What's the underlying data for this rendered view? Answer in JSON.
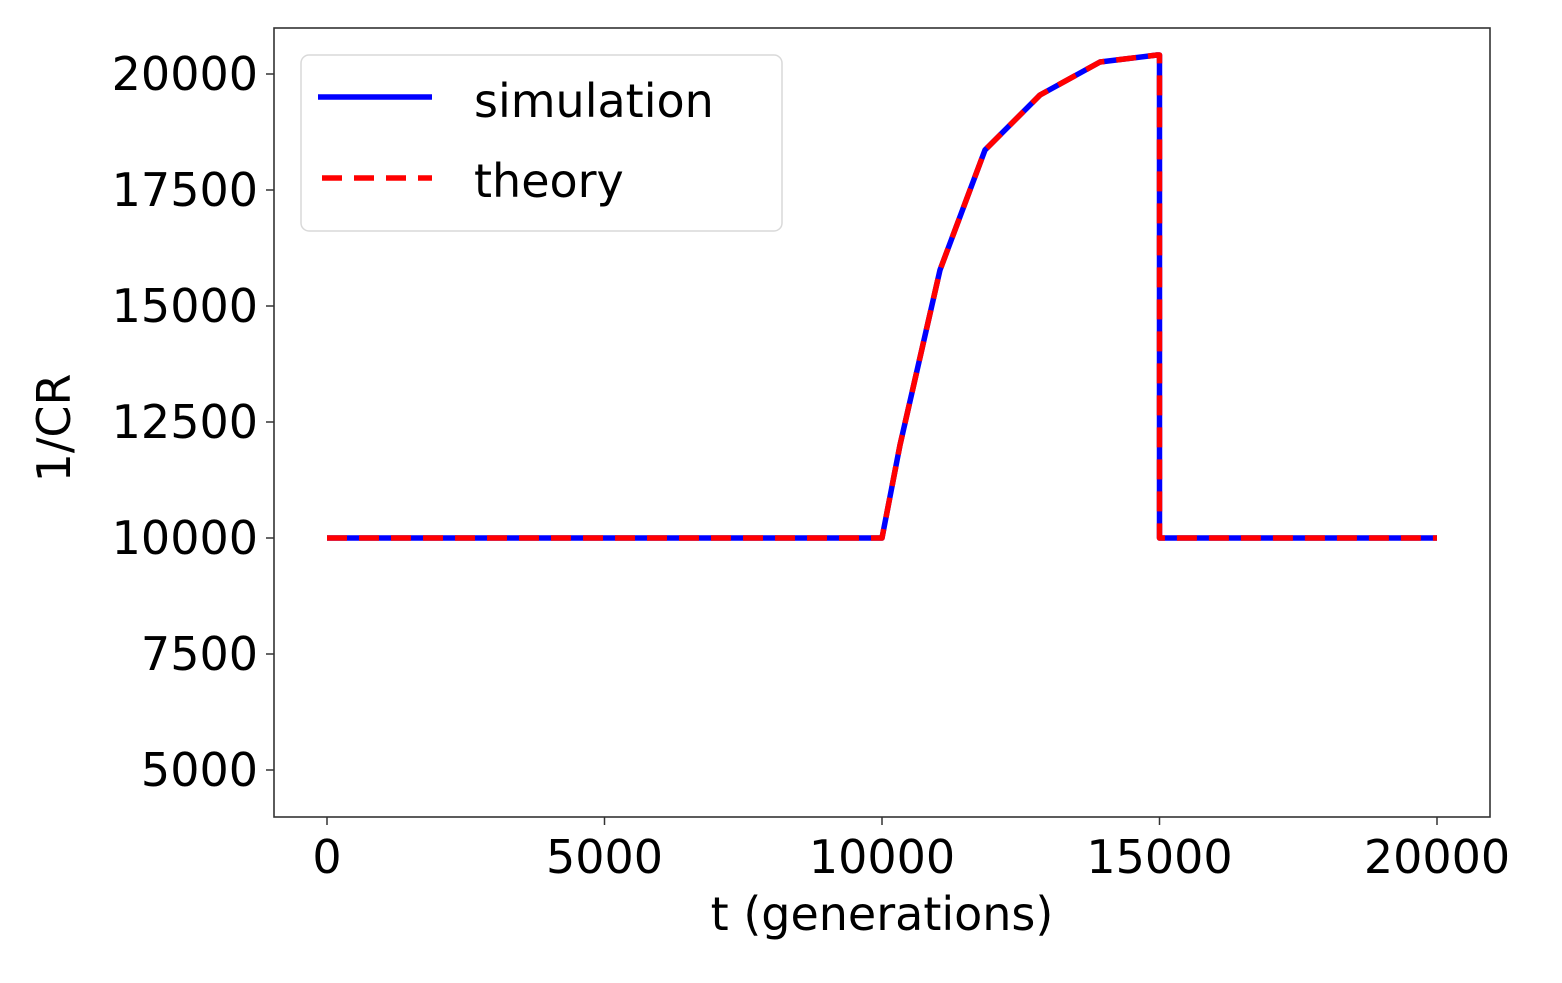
{
  "chart_data": {
    "type": "line",
    "title": "",
    "xlabel": "t (generations)",
    "ylabel": "1/CR",
    "xlim": [
      -1000,
      21000
    ],
    "ylim": [
      4000,
      21000
    ],
    "x_ticks": [
      0,
      5000,
      10000,
      15000,
      20000
    ],
    "x_tick_labels": [
      "0",
      "5000",
      "10000",
      "15000",
      "20000"
    ],
    "y_ticks": [
      5000,
      7500,
      10000,
      12500,
      15000,
      17500,
      20000
    ],
    "y_tick_labels": [
      "5000",
      "7500",
      "10000",
      "12500",
      "15000",
      "17500",
      "20000"
    ],
    "grid": false,
    "legend_position": "upper left",
    "series": [
      {
        "name": "simulation",
        "color": "#0000ff",
        "style": "solid",
        "x": [
          0,
          10000,
          10324,
          11045,
          11856,
          12847,
          13928,
          14955,
          15000,
          15000,
          20000
        ],
        "y": [
          10000,
          10000,
          12004,
          15776,
          18362,
          19547,
          20259,
          20409,
          20410,
          10000,
          10000
        ]
      },
      {
        "name": "theory",
        "color": "#ff0000",
        "style": "dashed",
        "x": [
          0,
          10000,
          10324,
          11045,
          11856,
          12847,
          13928,
          14955,
          15000,
          15000,
          20000
        ],
        "y": [
          10000,
          10000,
          12004,
          15776,
          18362,
          19547,
          20259,
          20409,
          20410,
          10000,
          10000
        ]
      }
    ]
  },
  "legend": {
    "items": [
      {
        "label": "simulation",
        "color": "#0000ff",
        "style": "solid"
      },
      {
        "label": "theory",
        "color": "#ff0000",
        "style": "dashed"
      }
    ]
  },
  "axes": {
    "xlabel": "t (generations)",
    "ylabel": "1/CR"
  }
}
